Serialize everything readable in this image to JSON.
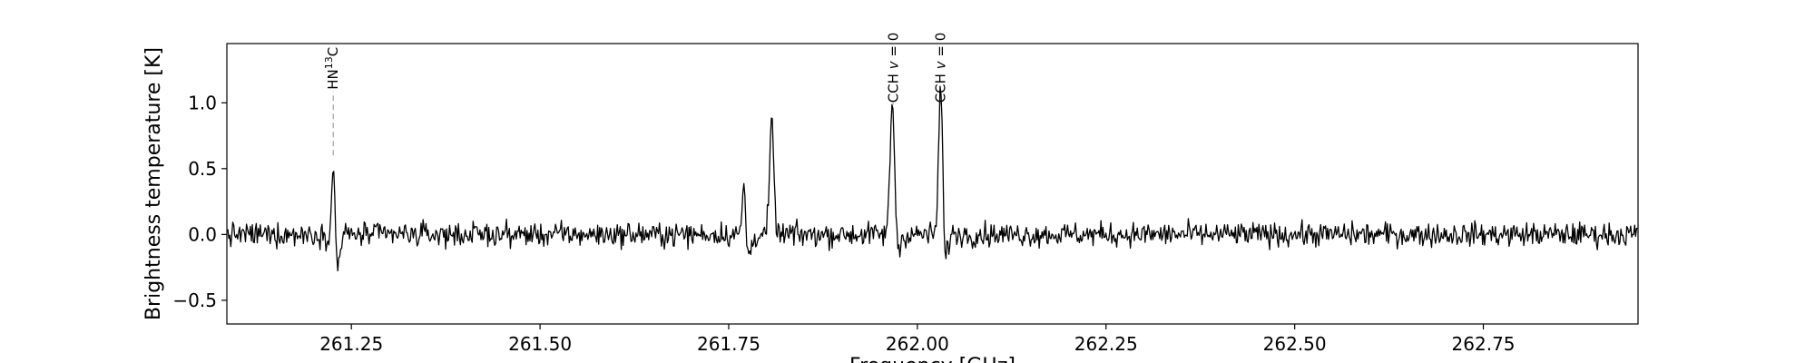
{
  "chart_data": {
    "type": "line",
    "title": "",
    "xlabel": "Frequency [GHz]",
    "ylabel": "Brightness temperature [K]",
    "xlim": [
      261.085,
      262.955
    ],
    "ylim": [
      -0.68,
      1.45
    ],
    "xticks": [
      261.25,
      261.5,
      261.75,
      262.0,
      262.25,
      262.5,
      262.75
    ],
    "xtick_labels": [
      "261.25",
      "261.50",
      "261.75",
      "262.00",
      "262.25",
      "262.50",
      "262.75"
    ],
    "yticks": [
      -0.5,
      0.0,
      0.5,
      1.0
    ],
    "ytick_labels": [
      "−0.5",
      "0.0",
      "0.5",
      "1.0"
    ],
    "grid": false,
    "legend": "none",
    "line_color": "#000000",
    "marker_color": "#aaaaaa",
    "noise_rms": 0.045,
    "channel_width": 0.0013,
    "peaks": [
      {
        "x": 261.226,
        "y": 0.58,
        "width": 0.0018
      },
      {
        "x": 261.77,
        "y": 0.4,
        "width": 0.002
      },
      {
        "x": 261.807,
        "y": 0.84,
        "width": 0.0028
      },
      {
        "x": 261.967,
        "y": 1.05,
        "width": 0.003
      },
      {
        "x": 262.03,
        "y": 1.0,
        "width": 0.0022
      },
      {
        "x": 262.033,
        "y": 0.45,
        "width": 0.0015
      }
    ],
    "dips": [
      {
        "x": 261.232,
        "y": -0.22,
        "width": 0.003
      },
      {
        "x": 261.777,
        "y": -0.14,
        "width": 0.004
      },
      {
        "x": 261.973,
        "y": -0.15,
        "width": 0.004
      },
      {
        "x": 262.037,
        "y": -0.17,
        "width": 0.003
      }
    ],
    "line_markers": [
      {
        "x": 261.226,
        "y_bottom": 0.6,
        "y_label": 1.1,
        "label_main": "HN",
        "label_sup": "13",
        "label_tail": "C"
      },
      {
        "x": 261.968,
        "y_bottom": 1.0,
        "y_label": 1.0,
        "label_main": "CCH ",
        "label_var": "v",
        "label_tail": " = 0"
      },
      {
        "x": 262.031,
        "y_bottom": 1.0,
        "y_label": 1.0,
        "label_main": "CCH ",
        "label_var": "v",
        "label_tail": " = 0"
      }
    ]
  }
}
